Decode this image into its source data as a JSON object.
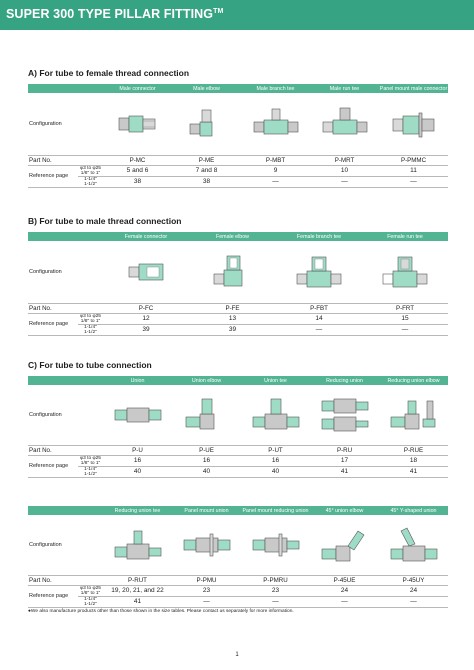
{
  "header": {
    "title": "SUPER 300 TYPE PILLAR FITTING",
    "tm": "TM"
  },
  "labels": {
    "configuration": "Configuration",
    "part_no": "Part No.",
    "reference_page": "Reference page",
    "size_small": "φ3 to φ25",
    "size_small_in": "1/8\" to 1\"",
    "size_large": "1-1/4\"",
    "size_large_in": "1-1/2\""
  },
  "sections": [
    {
      "title": "A) For tube to female thread connection",
      "columns": [
        "Male connector",
        "Male elbow",
        "Male branch tee",
        "Male run tee",
        "Panel mount male connector"
      ],
      "part_no": [
        "P-MC",
        "P-ME",
        "P-MBT",
        "P-MRT",
        "P-PMMC"
      ],
      "ref_small": [
        "5 and 6",
        "7 and 8",
        "9",
        "10",
        "11"
      ],
      "ref_large": [
        "38",
        "38",
        "—",
        "—",
        "—"
      ]
    },
    {
      "title": "B) For tube to male thread connection",
      "columns": [
        "Female connector",
        "Female elbow",
        "Female branch tee",
        "Female run tee"
      ],
      "part_no": [
        "P-FC",
        "P-FE",
        "P-FBT",
        "P-FRT"
      ],
      "ref_small": [
        "12",
        "13",
        "14",
        "15"
      ],
      "ref_large": [
        "39",
        "39",
        "—",
        "—"
      ]
    },
    {
      "title": "C) For tube to tube connection",
      "columns": [
        "Union",
        "Union elbow",
        "Union tee",
        "Reducing union",
        "Reducing union elbow"
      ],
      "part_no": [
        "P-U",
        "P-UE",
        "P-UT",
        "P-RU",
        "P-RUE"
      ],
      "ref_small": [
        "16",
        "16",
        "16",
        "17",
        "18"
      ],
      "ref_large": [
        "40",
        "40",
        "40",
        "41",
        "41"
      ]
    },
    {
      "title": "",
      "columns": [
        "Reducing union tee",
        "Panel mount union",
        "Panel mount reducing union",
        "45° union elbow",
        "45° Y-shaped union"
      ],
      "part_no": [
        "P-RUT",
        "P-PMU",
        "P-PMRU",
        "P-45UE",
        "P-45UY"
      ],
      "ref_small": [
        "19, 20, 21, and 22",
        "23",
        "23",
        "24",
        "24"
      ],
      "ref_large": [
        "41",
        "—",
        "—",
        "—",
        "—"
      ]
    }
  ],
  "note": "●We also manufacture products other than those shown in the size tables. Please contact us separately for more information.",
  "page_number": "1"
}
